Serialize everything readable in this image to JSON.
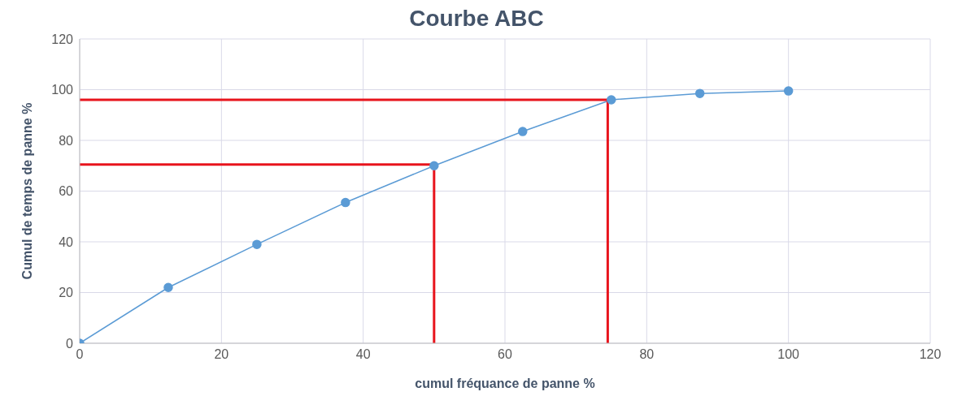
{
  "chart_data": {
    "type": "line",
    "title": "Courbe ABC",
    "xlabel": "cumul fréquance de panne %",
    "ylabel": "Cumul de temps de panne %",
    "xlim": [
      0,
      120
    ],
    "xticks": [
      0,
      20,
      40,
      60,
      80,
      100,
      120
    ],
    "ylim": [
      0,
      120
    ],
    "yticks": [
      0,
      20,
      40,
      60,
      80,
      100,
      120
    ],
    "grid": true,
    "marker": "circle",
    "series": [
      {
        "color": "#5b9bd5",
        "x": [
          0,
          12.5,
          25,
          37.5,
          50,
          62.5,
          75,
          87.5,
          100
        ],
        "values": [
          0,
          22,
          39,
          55.5,
          70,
          83.5,
          96,
          98.5,
          99.5
        ]
      },
      {
        "color": "#e8141c",
        "marker": "none",
        "x": [
          0,
          50,
          50
        ],
        "values": [
          70.5,
          70.5,
          0
        ]
      },
      {
        "color": "#e8141c",
        "marker": "none",
        "x": [
          0,
          74.5,
          74.5
        ],
        "values": [
          96,
          96,
          0
        ]
      }
    ]
  }
}
